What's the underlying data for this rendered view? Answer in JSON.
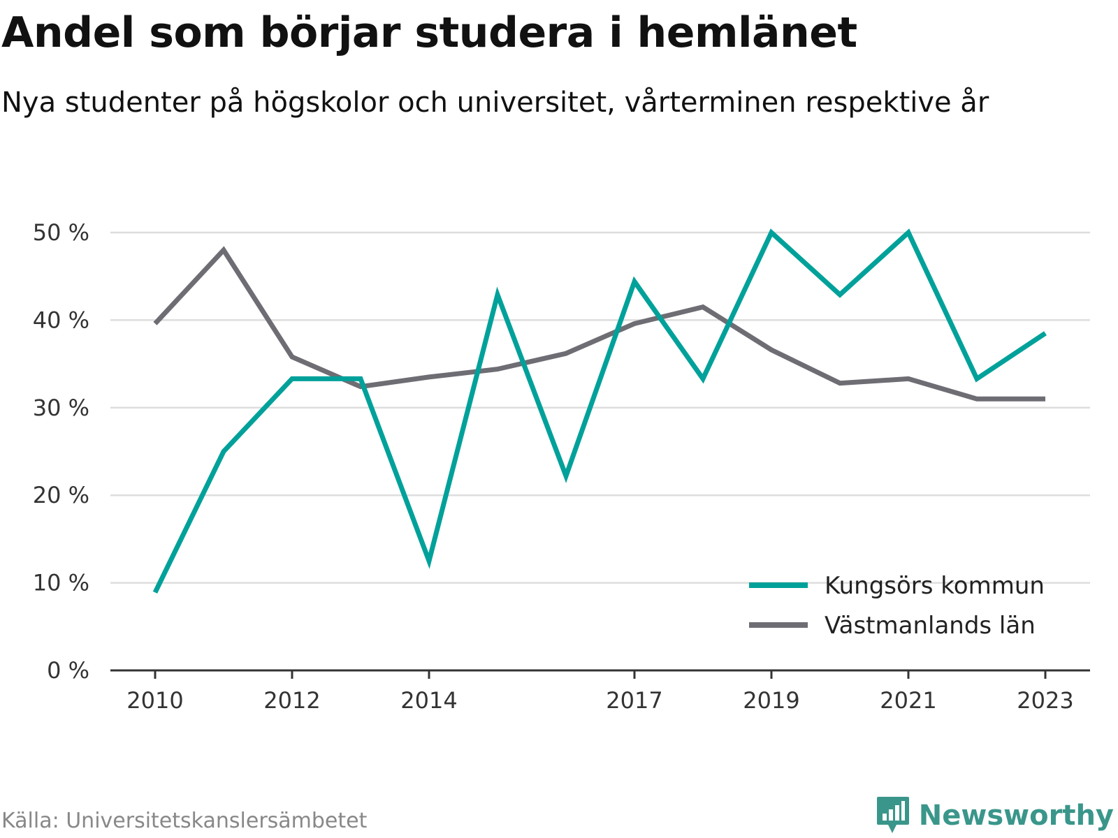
{
  "header": {
    "title": "Andel som börjar studera i hemlänet",
    "subtitle": "Nya studenter på högskolor och universitet, vårterminen respektive år"
  },
  "footer": {
    "source": "Källa: Universitetskanslersämbetet",
    "brand": "Newsworthy",
    "brand_icon": "bar-chart-bubble-icon",
    "brand_color": "#3a968a"
  },
  "chart_data": {
    "type": "line",
    "x": [
      2010,
      2011,
      2012,
      2013,
      2014,
      2015,
      2016,
      2017,
      2018,
      2019,
      2020,
      2021,
      2022,
      2023
    ],
    "x_tick_values": [
      2010,
      2012,
      2014,
      2017,
      2019,
      2021,
      2023
    ],
    "x_tick_labels": [
      "2010",
      "2012",
      "2014",
      "2017",
      "2019",
      "2021",
      "2023"
    ],
    "ylim": [
      0,
      50
    ],
    "y_ticks": [
      0,
      10,
      20,
      30,
      40,
      50
    ],
    "y_tick_labels": [
      "0 %",
      "10 %",
      "20 %",
      "30 %",
      "40 %",
      "50 %"
    ],
    "grid": true,
    "legend_position": "bottom-right",
    "series": [
      {
        "name": "Kungsörs kommun",
        "color": "#00a19a",
        "values": [
          8.9,
          25.0,
          33.3,
          33.3,
          12.5,
          42.9,
          22.2,
          44.4,
          33.3,
          50.0,
          42.9,
          50.0,
          33.3,
          38.5
        ]
      },
      {
        "name": "Västmanlands län",
        "color": "#6e6d74",
        "values": [
          39.6,
          48.0,
          35.8,
          32.4,
          33.5,
          34.4,
          36.2,
          39.6,
          41.5,
          36.6,
          32.8,
          33.3,
          31.0,
          31.0
        ]
      }
    ]
  }
}
